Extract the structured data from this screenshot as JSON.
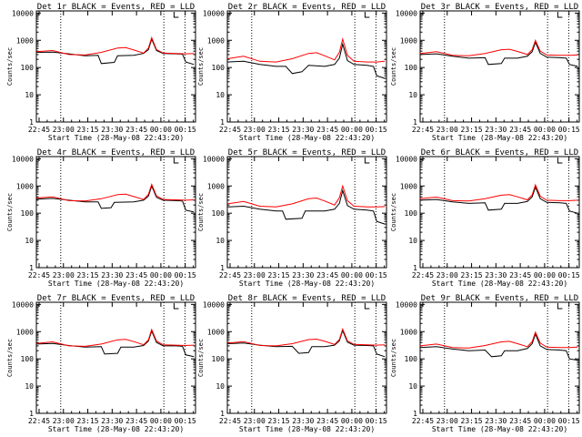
{
  "colors": {
    "background": "#ffffff",
    "events_line": "#000000",
    "lld_line": "#ff0000",
    "axis": "#000000",
    "marker_line": "#000000"
  },
  "shared": {
    "type": "line",
    "scale": "log",
    "ylim": [
      1,
      12000
    ],
    "y_ticks": [
      1,
      10,
      100,
      1000,
      10000
    ],
    "y_tick_labels": [
      "1",
      "10",
      "100",
      "1000",
      "10000"
    ],
    "xlim_minutes": [
      0,
      98
    ],
    "x_ticks_minutes": [
      1.67,
      16.67,
      31.67,
      46.67,
      61.67,
      76.67,
      91.67
    ],
    "x_tick_labels": [
      "22:45",
      "23:00",
      "23:15",
      "23:30",
      "23:45",
      "00:00",
      "00:15"
    ],
    "xlabel": "Start Time (28-May-08 22:43:20)",
    "ylabel": "Counts/sec",
    "dotted_markers_minutes": [
      15,
      78.5,
      91.5
    ],
    "legend_text": "BLACK = Events, RED = LLD"
  },
  "chart_data": [
    {
      "type": "line",
      "title": "Det 1r BLACK = Events, RED = LLD",
      "xlabel": "Start Time (28-May-08 22:43:20)",
      "ylabel": "Counts/sec",
      "series": [
        {
          "name": "Events",
          "x": [
            0,
            10,
            20,
            30,
            38,
            40,
            48,
            50,
            60,
            66,
            69,
            71,
            74,
            78,
            86,
            90,
            92,
            97
          ],
          "values": [
            360,
            370,
            320,
            270,
            280,
            140,
            155,
            270,
            280,
            330,
            450,
            1100,
            420,
            330,
            320,
            310,
            160,
            130
          ]
        },
        {
          "name": "LLD",
          "x": [
            0,
            10,
            20,
            30,
            40,
            50,
            55,
            60,
            66,
            69,
            71,
            74,
            78,
            86,
            92,
            97
          ],
          "values": [
            380,
            420,
            300,
            290,
            360,
            520,
            540,
            440,
            340,
            520,
            1250,
            460,
            340,
            330,
            320,
            330
          ]
        }
      ]
    },
    {
      "type": "line",
      "title": "Det 2r BLACK = Events, RED = LLD",
      "xlabel": "Start Time (28-May-08 22:43:20)",
      "ylabel": "Counts/sec",
      "series": [
        {
          "name": "Events",
          "x": [
            0,
            10,
            20,
            30,
            36,
            40,
            46,
            50,
            60,
            66,
            69,
            71,
            74,
            78,
            86,
            90,
            92,
            97
          ],
          "values": [
            160,
            170,
            130,
            110,
            110,
            60,
            70,
            120,
            110,
            130,
            220,
            720,
            180,
            130,
            120,
            110,
            50,
            40
          ]
        },
        {
          "name": "LLD",
          "x": [
            0,
            10,
            20,
            30,
            40,
            50,
            55,
            60,
            66,
            69,
            71,
            74,
            78,
            86,
            92,
            97
          ],
          "values": [
            210,
            260,
            170,
            160,
            210,
            330,
            350,
            270,
            190,
            360,
            1100,
            280,
            170,
            160,
            160,
            170
          ]
        }
      ]
    },
    {
      "type": "line",
      "title": "Det 3r BLACK = Events, RED = LLD",
      "xlabel": "Start Time (28-May-08 22:43:20)",
      "ylabel": "Counts/sec",
      "series": [
        {
          "name": "Events",
          "x": [
            0,
            10,
            20,
            30,
            40,
            42,
            50,
            52,
            60,
            66,
            69,
            71,
            74,
            78,
            86,
            90,
            92,
            97
          ],
          "values": [
            300,
            320,
            260,
            220,
            230,
            130,
            140,
            220,
            220,
            260,
            380,
            850,
            330,
            240,
            230,
            220,
            130,
            110
          ]
        },
        {
          "name": "LLD",
          "x": [
            0,
            10,
            20,
            30,
            40,
            50,
            55,
            60,
            66,
            69,
            71,
            74,
            78,
            86,
            92,
            97
          ],
          "values": [
            330,
            380,
            280,
            270,
            330,
            450,
            470,
            390,
            300,
            450,
            1000,
            400,
            290,
            280,
            280,
            290
          ]
        }
      ]
    },
    {
      "type": "line",
      "title": "Det 4r BLACK = Events, RED = LLD",
      "xlabel": "Start Time (28-May-08 22:43:20)",
      "ylabel": "Counts/sec",
      "series": [
        {
          "name": "Events",
          "x": [
            0,
            10,
            20,
            30,
            38,
            40,
            46,
            48,
            60,
            66,
            69,
            71,
            74,
            78,
            86,
            90,
            92,
            97
          ],
          "values": [
            330,
            350,
            300,
            260,
            260,
            150,
            160,
            250,
            260,
            300,
            420,
            1000,
            380,
            300,
            290,
            280,
            130,
            110
          ]
        },
        {
          "name": "LLD",
          "x": [
            0,
            10,
            20,
            30,
            40,
            50,
            55,
            60,
            66,
            69,
            71,
            74,
            78,
            86,
            92,
            97
          ],
          "values": [
            360,
            400,
            290,
            280,
            340,
            480,
            500,
            410,
            320,
            490,
            1150,
            430,
            320,
            310,
            300,
            310
          ]
        }
      ]
    },
    {
      "type": "line",
      "title": "Det 5r BLACK = Events, RED = LLD",
      "xlabel": "Start Time (28-May-08 22:43:20)",
      "ylabel": "Counts/sec",
      "series": [
        {
          "name": "Events",
          "x": [
            0,
            10,
            20,
            30,
            34,
            36,
            46,
            48,
            60,
            66,
            69,
            71,
            74,
            78,
            86,
            90,
            92,
            97
          ],
          "values": [
            170,
            180,
            140,
            120,
            120,
            60,
            65,
            120,
            120,
            140,
            230,
            680,
            190,
            140,
            130,
            120,
            50,
            40
          ]
        },
        {
          "name": "LLD",
          "x": [
            0,
            10,
            20,
            30,
            40,
            50,
            55,
            60,
            66,
            69,
            71,
            74,
            78,
            86,
            92,
            97
          ],
          "values": [
            220,
            270,
            180,
            170,
            220,
            340,
            360,
            280,
            200,
            370,
            1000,
            290,
            180,
            170,
            170,
            175
          ]
        }
      ]
    },
    {
      "type": "line",
      "title": "Det 6r BLACK = Events, RED = LLD",
      "xlabel": "Start Time (28-May-08 22:43:20)",
      "ylabel": "Counts/sec",
      "series": [
        {
          "name": "Events",
          "x": [
            0,
            10,
            20,
            30,
            40,
            42,
            50,
            52,
            60,
            66,
            69,
            71,
            74,
            78,
            86,
            90,
            92,
            97
          ],
          "values": [
            300,
            320,
            260,
            230,
            240,
            130,
            140,
            230,
            230,
            270,
            400,
            900,
            340,
            250,
            240,
            230,
            120,
            100
          ]
        },
        {
          "name": "LLD",
          "x": [
            0,
            10,
            20,
            30,
            40,
            50,
            55,
            60,
            66,
            69,
            71,
            74,
            78,
            86,
            92,
            97
          ],
          "values": [
            340,
            390,
            290,
            280,
            340,
            460,
            480,
            400,
            310,
            470,
            1100,
            420,
            300,
            290,
            290,
            300
          ]
        }
      ]
    },
    {
      "type": "line",
      "title": "Det 7r BLACK = Events, RED = LLD",
      "xlabel": "Start Time (28-May-08 22:43:20)",
      "ylabel": "Counts/sec",
      "series": [
        {
          "name": "Events",
          "x": [
            0,
            10,
            20,
            30,
            40,
            42,
            50,
            52,
            60,
            66,
            69,
            71,
            74,
            78,
            86,
            90,
            92,
            97
          ],
          "values": [
            350,
            370,
            310,
            270,
            280,
            150,
            160,
            270,
            270,
            310,
            450,
            1050,
            400,
            300,
            300,
            290,
            140,
            120
          ]
        },
        {
          "name": "LLD",
          "x": [
            0,
            10,
            20,
            30,
            40,
            50,
            55,
            60,
            66,
            69,
            71,
            74,
            78,
            86,
            92,
            97
          ],
          "values": [
            370,
            420,
            300,
            290,
            350,
            500,
            520,
            430,
            330,
            500,
            1200,
            450,
            330,
            320,
            310,
            320
          ]
        }
      ]
    },
    {
      "type": "line",
      "title": "Det 8r BLACK = Events, RED = LLD",
      "xlabel": "Start Time (28-May-08 22:43:20)",
      "ylabel": "Counts/sec",
      "series": [
        {
          "name": "Events",
          "x": [
            0,
            10,
            20,
            30,
            40,
            44,
            50,
            52,
            60,
            66,
            69,
            71,
            74,
            78,
            86,
            90,
            92,
            97
          ],
          "values": [
            360,
            380,
            320,
            280,
            290,
            160,
            170,
            280,
            280,
            320,
            460,
            1100,
            410,
            320,
            310,
            300,
            150,
            120
          ]
        },
        {
          "name": "LLD",
          "x": [
            0,
            10,
            20,
            30,
            40,
            50,
            55,
            60,
            66,
            69,
            71,
            74,
            78,
            86,
            92,
            97
          ],
          "values": [
            380,
            430,
            310,
            300,
            360,
            510,
            530,
            440,
            340,
            510,
            1250,
            460,
            340,
            330,
            320,
            330
          ]
        }
      ]
    },
    {
      "type": "line",
      "title": "Det 9r BLACK = Events, RED = LLD",
      "xlabel": "Start Time (28-May-08 22:43:20)",
      "ylabel": "Counts/sec",
      "series": [
        {
          "name": "Events",
          "x": [
            0,
            10,
            20,
            30,
            40,
            44,
            50,
            52,
            60,
            66,
            69,
            71,
            74,
            78,
            86,
            90,
            92,
            97
          ],
          "values": [
            260,
            280,
            230,
            200,
            210,
            120,
            130,
            200,
            200,
            240,
            360,
            820,
            300,
            220,
            210,
            200,
            100,
            90
          ]
        },
        {
          "name": "LLD",
          "x": [
            0,
            10,
            20,
            30,
            40,
            50,
            55,
            60,
            66,
            69,
            71,
            74,
            78,
            86,
            92,
            97
          ],
          "values": [
            300,
            350,
            260,
            250,
            310,
            420,
            440,
            360,
            280,
            430,
            950,
            380,
            270,
            260,
            260,
            270
          ]
        }
      ]
    }
  ]
}
